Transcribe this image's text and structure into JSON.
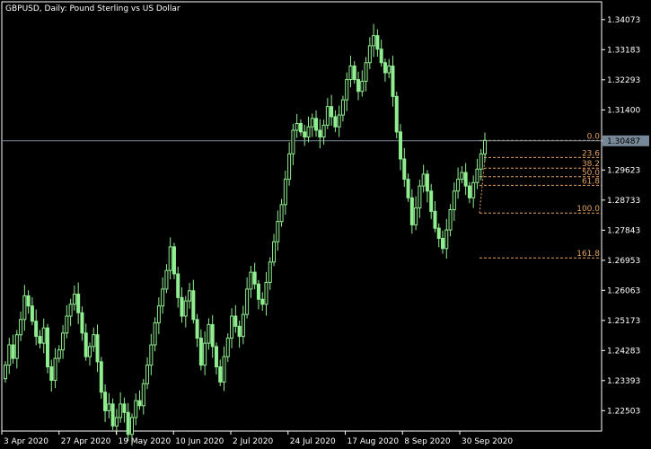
{
  "chart_data": {
    "type": "candlestick",
    "title": "GBPUSD, Daily:  Pound Sterling vs US Dollar",
    "symbol": "GBPUSD",
    "timeframe": "Daily",
    "y_ticks": [
      1.34073,
      1.33183,
      1.32293,
      1.314,
      1.30487,
      1.29623,
      1.28733,
      1.27843,
      1.26953,
      1.26063,
      1.25173,
      1.24283,
      1.23393,
      1.22503
    ],
    "y_tick_labels": [
      "1.34073",
      "1.33183",
      "1.32293",
      "1.31400",
      "1.30487",
      "1.29623",
      "1.28733",
      "1.27843",
      "1.26953",
      "1.26063",
      "1.25173",
      "1.24283",
      "1.23393",
      "1.22503"
    ],
    "ylim": [
      1.219,
      1.346
    ],
    "x_labels": [
      "3 Apr 2020",
      "27 Apr 2020",
      "19 May 2020",
      "10 Jun 2020",
      "2 Jul 2020",
      "24 Jul 2020",
      "17 Aug 2020",
      "8 Sep 2020",
      "30 Sep 2020"
    ],
    "current_price": 1.30487,
    "current_price_label": "1.30487",
    "bull_color": "#90ee90",
    "price_line_color": "#778899",
    "fib_color": "#e0a060",
    "fibonacci": {
      "high": 1.305,
      "low": 1.2835,
      "levels": [
        {
          "label": "0.0",
          "ratio": 0.0
        },
        {
          "label": "23.6",
          "ratio": 0.236
        },
        {
          "label": "38.2",
          "ratio": 0.382
        },
        {
          "label": "50.0",
          "ratio": 0.5
        },
        {
          "label": "61.8",
          "ratio": 0.618
        },
        {
          "label": "100.0",
          "ratio": 1.0
        },
        {
          "label": "161.8",
          "ratio": 1.618
        }
      ]
    },
    "closes": [
      1.2385,
      1.2445,
      1.2405,
      1.2475,
      1.252,
      1.259,
      1.256,
      1.2515,
      1.247,
      1.245,
      1.2495,
      1.238,
      1.234,
      1.2405,
      1.243,
      1.248,
      1.253,
      1.2565,
      1.2595,
      1.254,
      1.248,
      1.241,
      1.244,
      1.2475,
      1.2395,
      1.2305,
      1.225,
      1.227,
      1.2205,
      1.223,
      1.227,
      1.2245,
      1.218,
      1.223,
      1.228,
      1.2265,
      1.233,
      1.2385,
      1.2445,
      1.251,
      1.256,
      1.261,
      1.2665,
      1.2735,
      1.2655,
      1.2585,
      1.253,
      1.2575,
      1.2605,
      1.252,
      1.2465,
      1.2385,
      1.245,
      1.2505,
      1.244,
      1.238,
      1.2335,
      1.241,
      1.2465,
      1.253,
      1.25,
      1.247,
      1.2535,
      1.261,
      1.266,
      1.2625,
      1.258,
      1.2565,
      1.263,
      1.269,
      1.275,
      1.281,
      1.286,
      1.2935,
      1.301,
      1.308,
      1.31,
      1.3075,
      1.306,
      1.309,
      1.3115,
      1.308,
      1.306,
      1.3095,
      1.315,
      1.312,
      1.309,
      1.3125,
      1.317,
      1.323,
      1.327,
      1.323,
      1.3195,
      1.3225,
      1.328,
      1.333,
      1.336,
      1.332,
      1.328,
      1.325,
      1.327,
      1.318,
      1.3075,
      1.2995,
      1.2935,
      1.288,
      1.28,
      1.285,
      1.2915,
      1.295,
      1.29,
      1.284,
      1.279,
      1.276,
      1.273,
      1.2785,
      1.2845,
      1.29,
      1.2935,
      1.2955,
      1.2915,
      1.288,
      1.2925,
      1.2965,
      1.301,
      1.305
    ]
  }
}
